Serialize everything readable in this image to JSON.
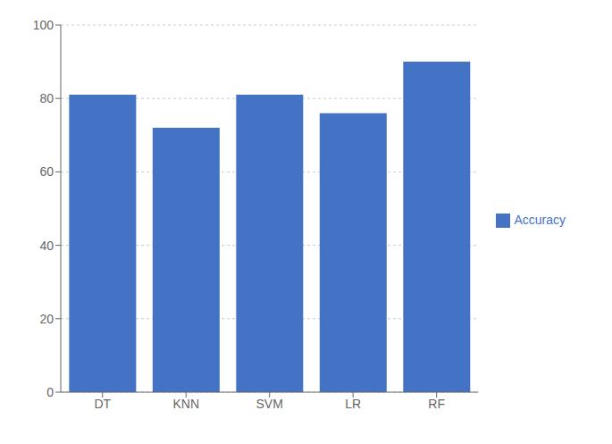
{
  "chart_data": {
    "type": "bar",
    "categories": [
      "DT",
      "KNN",
      "SVM",
      "LR",
      "RF"
    ],
    "series": [
      {
        "name": "Accuracy",
        "color": "#4472C4",
        "values": [
          81,
          72,
          81,
          76,
          90
        ]
      }
    ],
    "ylim": [
      0,
      100
    ],
    "yticks": [
      0,
      20,
      40,
      60,
      80,
      100
    ],
    "grid": true,
    "legend": "right"
  }
}
